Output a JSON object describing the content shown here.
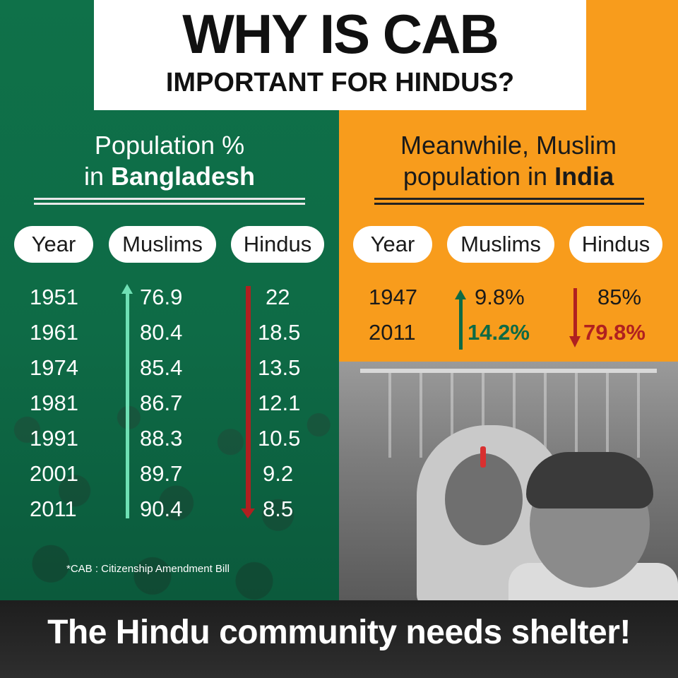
{
  "title": {
    "main": "WHY IS CAB",
    "sub": "IMPORTANT FOR HINDUS?"
  },
  "bangladesh": {
    "heading_line1": "Population %",
    "heading_line2_prefix": "in ",
    "heading_line2_bold": "Bangladesh",
    "columns": [
      "Year",
      "Muslims",
      "Hindus"
    ],
    "rows": [
      {
        "year": "1951",
        "muslims": "76.9",
        "hindus": "22"
      },
      {
        "year": "1961",
        "muslims": "80.4",
        "hindus": "18.5"
      },
      {
        "year": "1974",
        "muslims": "85.4",
        "hindus": "13.5"
      },
      {
        "year": "1981",
        "muslims": "86.7",
        "hindus": "12.1"
      },
      {
        "year": "1991",
        "muslims": "88.3",
        "hindus": "10.5"
      },
      {
        "year": "2001",
        "muslims": "89.7",
        "hindus": "9.2"
      },
      {
        "year": "2011",
        "muslims": "90.4",
        "hindus": "8.5"
      }
    ],
    "footnote": "*CAB : Citizenship Amendment Bill"
  },
  "india": {
    "heading_line1": "Meanwhile, Muslim",
    "heading_line2_prefix": "population in ",
    "heading_line2_bold": "India",
    "columns": [
      "Year",
      "Muslims",
      "Hindus"
    ],
    "rows": [
      {
        "year": "1947",
        "muslims": "9.8%",
        "hindus": "85%"
      },
      {
        "year": "2011",
        "muslims": "14.2%",
        "hindus": "79.8%"
      }
    ]
  },
  "footer": "The Hindu community needs shelter!",
  "colors": {
    "green": "#0e6a45",
    "orange": "#f89c1c",
    "up_arrow_light": "#6fe0b4",
    "down_arrow_red": "#b02020",
    "highlight_green": "#0e6a45",
    "highlight_red": "#b02020"
  }
}
